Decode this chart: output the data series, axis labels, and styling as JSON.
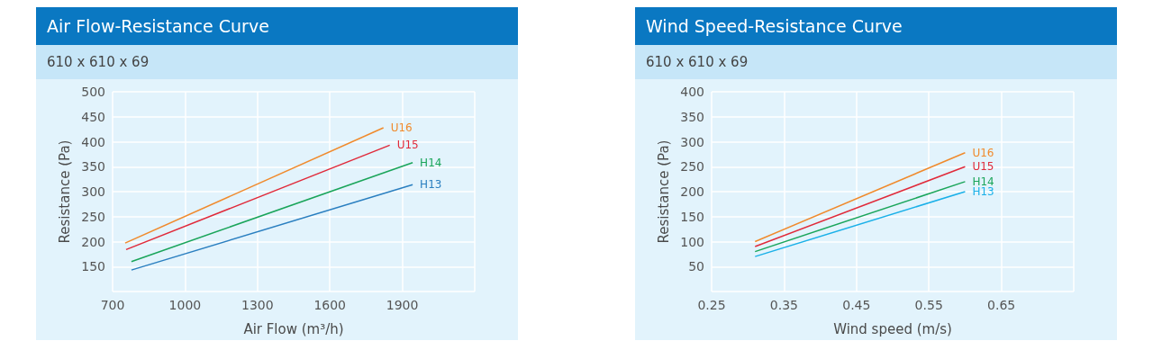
{
  "chart_data": [
    {
      "type": "line",
      "title": "Air Flow-Resistance Curve",
      "subtitle": "610 x 610 x 69",
      "xlabel": "Air Flow (m³/h)",
      "ylabel": "Resistance (Pa)",
      "xlim": [
        700,
        2200
      ],
      "xticks": [
        700,
        1000,
        1300,
        1600,
        1900,
        {
          "value": 2200,
          "label": null
        }
      ],
      "ylim": [
        100,
        500
      ],
      "yticks": [
        {
          "value": 100,
          "label": null
        },
        150,
        200,
        250,
        300,
        350,
        400,
        450,
        500
      ],
      "grid": true,
      "legend": false,
      "marker": "none",
      "line_style": "solid",
      "series": [
        {
          "name": "U16",
          "color": "#f08a2c",
          "x": [
            752,
            1822
          ],
          "values": [
            197,
            428
          ]
        },
        {
          "name": "U15",
          "color": "#e02a3a",
          "x": [
            756,
            1848
          ],
          "values": [
            184,
            393
          ]
        },
        {
          "name": "H14",
          "color": "#1aa55a",
          "x": [
            778,
            1943
          ],
          "values": [
            160,
            358
          ]
        },
        {
          "name": "H13",
          "color": "#2a7fc0",
          "x": [
            778,
            1943
          ],
          "values": [
            143,
            314
          ]
        }
      ]
    },
    {
      "type": "line",
      "title": "Wind Speed-Resistance Curve",
      "subtitle": "610 x 610 x 69",
      "xlabel": "Wind speed (m/s)",
      "ylabel": "Resistance (Pa)",
      "xlim": [
        0.25,
        0.75
      ],
      "xticks": [
        0.25,
        0.35,
        0.45,
        0.55,
        0.65,
        {
          "value": 0.75,
          "label": null
        }
      ],
      "ylim": [
        0,
        400
      ],
      "yticks": [
        {
          "value": 0,
          "label": null
        },
        50,
        100,
        150,
        200,
        250,
        300,
        350,
        400
      ],
      "grid": true,
      "legend": false,
      "marker": "none",
      "line_style": "solid",
      "series": [
        {
          "name": "U16",
          "color": "#f08a2c",
          "x": [
            0.31,
            0.6
          ],
          "values": [
            100,
            278
          ]
        },
        {
          "name": "U15",
          "color": "#e02a3a",
          "x": [
            0.31,
            0.6
          ],
          "values": [
            90,
            250
          ]
        },
        {
          "name": "H14",
          "color": "#1aa55a",
          "x": [
            0.31,
            0.6
          ],
          "values": [
            80,
            220
          ]
        },
        {
          "name": "H13",
          "color": "#1ab0e8",
          "x": [
            0.31,
            0.6
          ],
          "values": [
            70,
            200
          ]
        }
      ]
    }
  ]
}
